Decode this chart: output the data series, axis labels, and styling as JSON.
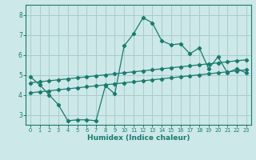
{
  "xlabel": "Humidex (Indice chaleur)",
  "background_color": "#cce8e8",
  "grid_color": "#aacccc",
  "line_color": "#1a7a6e",
  "x_values": [
    0,
    1,
    2,
    3,
    4,
    5,
    6,
    7,
    8,
    9,
    10,
    11,
    12,
    13,
    14,
    15,
    16,
    17,
    18,
    19,
    20,
    21,
    22,
    23
  ],
  "line1": [
    4.9,
    4.5,
    4.0,
    3.5,
    2.7,
    2.75,
    2.75,
    2.7,
    4.45,
    4.05,
    6.45,
    7.05,
    7.85,
    7.6,
    6.7,
    6.5,
    6.55,
    6.05,
    6.35,
    5.3,
    5.9,
    5.1,
    5.3,
    5.1
  ],
  "line2": [
    4.6,
    4.65,
    4.7,
    4.75,
    4.8,
    4.85,
    4.9,
    4.95,
    5.0,
    5.05,
    5.1,
    5.15,
    5.2,
    5.25,
    5.3,
    5.35,
    5.4,
    5.45,
    5.5,
    5.55,
    5.6,
    5.65,
    5.7,
    5.75
  ],
  "line3": [
    4.1,
    4.15,
    4.2,
    4.25,
    4.3,
    4.35,
    4.4,
    4.45,
    4.5,
    4.55,
    4.6,
    4.65,
    4.7,
    4.75,
    4.8,
    4.85,
    4.9,
    4.95,
    5.0,
    5.05,
    5.1,
    5.15,
    5.2,
    5.25
  ],
  "ylim": [
    2.5,
    8.5
  ],
  "xlim": [
    -0.5,
    23.5
  ],
  "yticks": [
    3,
    4,
    5,
    6,
    7,
    8
  ],
  "xticks": [
    0,
    1,
    2,
    3,
    4,
    5,
    6,
    7,
    8,
    9,
    10,
    11,
    12,
    13,
    14,
    15,
    16,
    17,
    18,
    19,
    20,
    21,
    22,
    23
  ]
}
